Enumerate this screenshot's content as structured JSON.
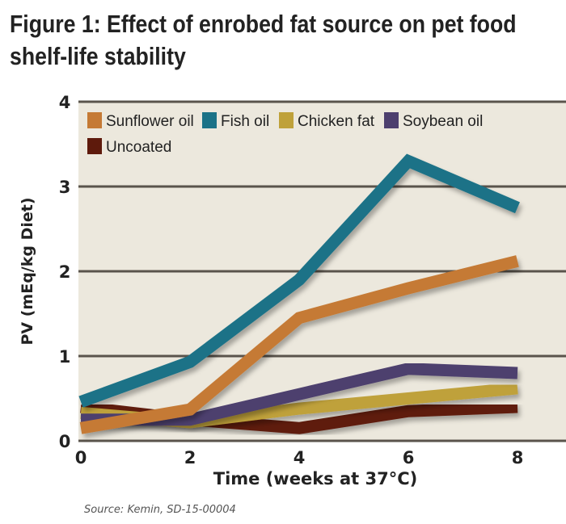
{
  "chart_data": {
    "type": "line",
    "title": "Figure 1: Effect of enrobed fat source on pet food shelf-life stability",
    "xlabel": "Time (weeks at 37°C)",
    "ylabel": "PV (mEq/kg Diet)",
    "x": [
      0,
      2,
      4,
      6,
      8
    ],
    "xticks": [
      "0",
      "2",
      "4",
      "6",
      "8"
    ],
    "yticks": [
      "0",
      "1",
      "2",
      "3",
      "4"
    ],
    "xlim": [
      0,
      8
    ],
    "ylim": [
      0,
      4
    ],
    "grid": true,
    "legend": "top-left",
    "series": [
      {
        "name": "Sunflower oil",
        "color": "#c57a35",
        "values": [
          0.15,
          0.37,
          1.45,
          1.8,
          2.12
        ]
      },
      {
        "name": "Fish oil",
        "color": "#1b7287",
        "values": [
          0.46,
          0.93,
          1.9,
          3.3,
          2.75
        ]
      },
      {
        "name": "Chicken fat",
        "color": "#bfa13a",
        "values": [
          0.33,
          0.22,
          0.38,
          0.5,
          0.62
        ]
      },
      {
        "name": "Soybean oil",
        "color": "#4d3f6e",
        "values": [
          0.25,
          0.25,
          0.55,
          0.85,
          0.8
        ]
      },
      {
        "name": "Uncoated",
        "color": "#5e1a0c",
        "values": [
          0.4,
          0.25,
          0.15,
          0.35,
          0.4
        ]
      }
    ],
    "background": "#ece8dd"
  },
  "source": "Source: Kemin, SD-15-00004"
}
